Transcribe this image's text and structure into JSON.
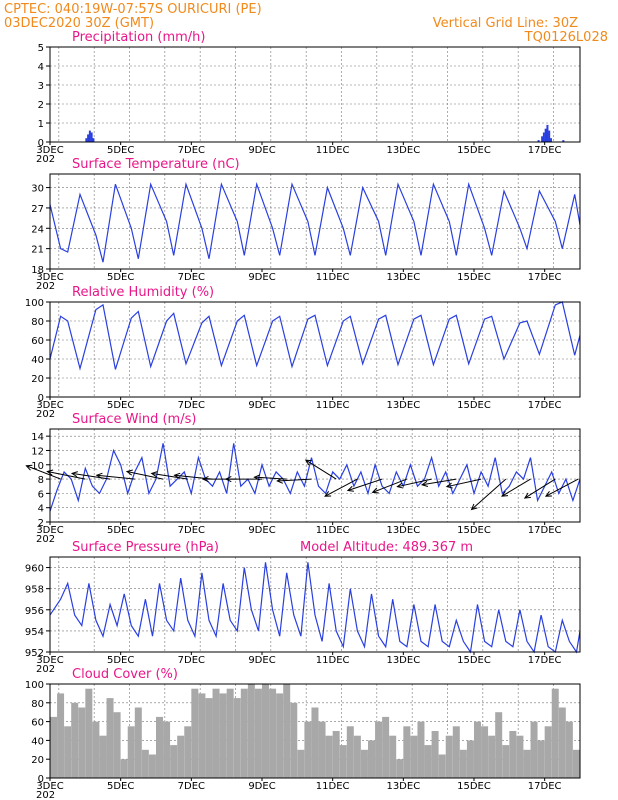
{
  "header": {
    "line1": "CPTEC:   040:19W-07:57S   OURICURI (PE)",
    "line2": "03DEC2020 30Z (GMT)",
    "grid_note": "Vertical Grid Line: 30Z",
    "code": "TQ0126L028"
  },
  "colors": {
    "header": "#f08a1c",
    "title": "#e8178a",
    "series": "#2a3fe0",
    "wind_arrow": "#000000",
    "cloud": "#a8a8a8",
    "grid": "#777777"
  },
  "x_axis": {
    "start_day": 3,
    "end_day": 18,
    "tick_labels": [
      "3DEC",
      "5DEC",
      "7DEC",
      "9DEC",
      "11DEC",
      "13DEC",
      "15DEC",
      "17DEC"
    ],
    "tick_days": [
      3,
      5,
      7,
      9,
      11,
      13,
      15,
      17
    ],
    "year_fragment": "202"
  },
  "chart_data": [
    {
      "type": "bar",
      "title": "Precipitation (mm/h)",
      "ylim": [
        0,
        5
      ],
      "yticks": [
        "0",
        "1",
        "2",
        "3",
        "4",
        "5"
      ],
      "x": [
        4.0,
        4.05,
        4.1,
        4.15,
        4.2,
        16.8,
        16.9,
        16.95,
        17.0,
        17.05,
        17.1,
        17.15,
        17.5
      ],
      "values": [
        0.2,
        0.4,
        0.6,
        0.5,
        0.2,
        0.1,
        0.3,
        0.5,
        0.7,
        0.9,
        0.6,
        0.2,
        0.1
      ]
    },
    {
      "type": "line",
      "title": "Surface Temperature (nC)",
      "ylim": [
        18,
        32
      ],
      "yticks": [
        "18",
        "21",
        "24",
        "27",
        "30"
      ],
      "x": [
        3.0,
        3.3,
        3.5,
        3.85,
        4.3,
        4.5,
        4.85,
        5.3,
        5.5,
        5.85,
        6.3,
        6.5,
        6.85,
        7.3,
        7.5,
        7.85,
        8.3,
        8.5,
        8.85,
        9.3,
        9.5,
        9.85,
        10.3,
        10.5,
        10.85,
        11.3,
        11.5,
        11.85,
        12.3,
        12.5,
        12.85,
        13.3,
        13.5,
        13.85,
        14.3,
        14.5,
        14.85,
        15.3,
        15.5,
        15.85,
        16.3,
        16.5,
        16.85,
        17.3,
        17.5,
        17.85,
        18.0
      ],
      "values": [
        27.5,
        21,
        20.5,
        29,
        23,
        19,
        30.5,
        24,
        19.5,
        30.5,
        25,
        20,
        30.5,
        24,
        19.5,
        30.5,
        25,
        20,
        30.5,
        24,
        20,
        30.5,
        25,
        20,
        30,
        24,
        20,
        30,
        25,
        20,
        30.5,
        25,
        20,
        30.5,
        25,
        20,
        30.5,
        24,
        20,
        29.5,
        24,
        21,
        29.5,
        25,
        21,
        29,
        24.5
      ]
    },
    {
      "type": "line",
      "title": "Relative Humidity (%)",
      "ylim": [
        0,
        100
      ],
      "yticks": [
        "0",
        "20",
        "40",
        "60",
        "80",
        "100"
      ],
      "x": [
        3.0,
        3.3,
        3.5,
        3.85,
        4.3,
        4.5,
        4.85,
        5.3,
        5.5,
        5.85,
        6.3,
        6.5,
        6.85,
        7.3,
        7.5,
        7.85,
        8.3,
        8.5,
        8.85,
        9.3,
        9.5,
        9.85,
        10.3,
        10.5,
        10.85,
        11.3,
        11.5,
        11.85,
        12.3,
        12.5,
        12.85,
        13.3,
        13.5,
        13.85,
        14.3,
        14.5,
        14.85,
        15.3,
        15.5,
        15.85,
        16.3,
        16.5,
        16.85,
        17.3,
        17.5,
        17.85,
        18.0
      ],
      "values": [
        40,
        85,
        80,
        30,
        92,
        97,
        29,
        83,
        90,
        32,
        80,
        88,
        35,
        78,
        85,
        33,
        80,
        86,
        33,
        80,
        85,
        32,
        82,
        86,
        33,
        80,
        85,
        35,
        82,
        86,
        34,
        82,
        86,
        34,
        82,
        86,
        35,
        82,
        85,
        40,
        78,
        80,
        45,
        97,
        100,
        44,
        65
      ]
    },
    {
      "type": "line",
      "title": "Surface Wind (m/s)",
      "ylim": [
        2,
        15
      ],
      "yticks": [
        "2",
        "4",
        "6",
        "8",
        "10",
        "12",
        "14"
      ],
      "x": [
        3.0,
        3.2,
        3.4,
        3.6,
        3.8,
        4.0,
        4.2,
        4.4,
        4.6,
        4.8,
        5.0,
        5.2,
        5.4,
        5.6,
        5.8,
        6.0,
        6.2,
        6.4,
        6.6,
        6.8,
        7.0,
        7.2,
        7.4,
        7.6,
        7.8,
        8.0,
        8.2,
        8.4,
        8.6,
        8.8,
        9.0,
        9.2,
        9.4,
        9.6,
        9.8,
        10.0,
        10.2,
        10.4,
        10.6,
        10.8,
        11.0,
        11.2,
        11.4,
        11.6,
        11.8,
        12.0,
        12.2,
        12.4,
        12.6,
        12.8,
        13.0,
        13.2,
        13.4,
        13.6,
        13.8,
        14.0,
        14.2,
        14.4,
        14.6,
        14.8,
        15.0,
        15.2,
        15.4,
        15.6,
        15.8,
        16.0,
        16.2,
        16.4,
        16.6,
        16.8,
        17.0,
        17.2,
        17.4,
        17.6,
        17.8,
        18.0
      ],
      "values": [
        3.5,
        6.5,
        9,
        8,
        5,
        9.5,
        7,
        6,
        8,
        12,
        10,
        6,
        9,
        11,
        6,
        8,
        13,
        7,
        8,
        9,
        6,
        11,
        8,
        7,
        9,
        6,
        13,
        7,
        8,
        6,
        10,
        7,
        9,
        8,
        6,
        9,
        7,
        11,
        7,
        6,
        9,
        8,
        10,
        7,
        9,
        6,
        10,
        7,
        6,
        9,
        7,
        10,
        7,
        8,
        11,
        7,
        9,
        6,
        8,
        10,
        6,
        9,
        7,
        11,
        6,
        7,
        9,
        8,
        11,
        5,
        7,
        9,
        6,
        8,
        5,
        8
      ]
    },
    {
      "type": "line",
      "title": "Surface Pressure (hPa)",
      "ylim": [
        952,
        961
      ],
      "yticks": [
        "952",
        "954",
        "956",
        "958",
        "960"
      ],
      "annotation": "Model Altitude: 489.367 m",
      "x": [
        3.0,
        3.3,
        3.5,
        3.7,
        3.9,
        4.1,
        4.3,
        4.5,
        4.7,
        4.9,
        5.1,
        5.3,
        5.5,
        5.7,
        5.9,
        6.1,
        6.3,
        6.5,
        6.7,
        6.9,
        7.1,
        7.3,
        7.5,
        7.7,
        7.9,
        8.1,
        8.3,
        8.5,
        8.7,
        8.9,
        9.1,
        9.3,
        9.5,
        9.7,
        9.9,
        10.1,
        10.3,
        10.5,
        10.7,
        10.9,
        11.1,
        11.3,
        11.5,
        11.7,
        11.9,
        12.1,
        12.3,
        12.5,
        12.7,
        12.9,
        13.1,
        13.3,
        13.5,
        13.7,
        13.9,
        14.1,
        14.3,
        14.5,
        14.7,
        14.9,
        15.1,
        15.3,
        15.5,
        15.7,
        15.9,
        16.1,
        16.3,
        16.5,
        16.7,
        16.9,
        17.1,
        17.3,
        17.5,
        17.7,
        17.9,
        18.0
      ],
      "values": [
        955.5,
        957,
        958.5,
        955.5,
        954.5,
        958.5,
        955,
        953.5,
        956.5,
        954.5,
        957.5,
        954.5,
        953.5,
        957,
        953.5,
        958.5,
        955,
        954,
        959,
        955,
        953.5,
        959.5,
        955,
        953.5,
        958.5,
        955,
        954,
        960,
        956,
        954,
        960.5,
        956,
        953.5,
        959.5,
        955.5,
        953.5,
        960.5,
        955.5,
        953,
        958.5,
        954,
        952.5,
        958,
        954,
        952.5,
        957.5,
        953.5,
        952.5,
        957,
        953,
        952.5,
        956.5,
        953,
        952.5,
        956.5,
        953,
        952.5,
        955,
        953,
        952,
        956.5,
        953,
        952.5,
        956,
        953,
        952.5,
        956,
        953,
        952,
        955.5,
        952.5,
        952,
        955,
        953,
        952,
        954
      ]
    },
    {
      "type": "bar",
      "title": "Cloud Cover (%)",
      "ylim": [
        0,
        100
      ],
      "yticks": [
        "0",
        "20",
        "40",
        "60",
        "80",
        "100"
      ],
      "x": [
        3.0,
        3.2,
        3.4,
        3.6,
        3.8,
        4.0,
        4.2,
        4.4,
        4.6,
        4.8,
        5.0,
        5.2,
        5.4,
        5.6,
        5.8,
        6.0,
        6.2,
        6.4,
        6.6,
        6.8,
        7.0,
        7.2,
        7.4,
        7.6,
        7.8,
        8.0,
        8.2,
        8.4,
        8.6,
        8.8,
        9.0,
        9.2,
        9.4,
        9.6,
        9.8,
        10.0,
        10.2,
        10.4,
        10.6,
        10.8,
        11.0,
        11.2,
        11.4,
        11.6,
        11.8,
        12.0,
        12.2,
        12.4,
        12.6,
        12.8,
        13.0,
        13.2,
        13.4,
        13.6,
        13.8,
        14.0,
        14.2,
        14.4,
        14.6,
        14.8,
        15.0,
        15.2,
        15.4,
        15.6,
        15.8,
        16.0,
        16.2,
        16.4,
        16.6,
        16.8,
        17.0,
        17.2,
        17.4,
        17.6,
        17.8
      ],
      "values": [
        65,
        90,
        55,
        80,
        75,
        95,
        60,
        45,
        85,
        70,
        20,
        55,
        75,
        30,
        25,
        65,
        60,
        35,
        45,
        55,
        95,
        90,
        85,
        95,
        90,
        95,
        85,
        95,
        100,
        95,
        100,
        95,
        90,
        100,
        80,
        30,
        60,
        75,
        60,
        45,
        50,
        35,
        55,
        45,
        30,
        40,
        60,
        65,
        45,
        20,
        55,
        45,
        60,
        35,
        50,
        25,
        45,
        55,
        30,
        40,
        60,
        55,
        45,
        70,
        35,
        50,
        45,
        30,
        60,
        40,
        55,
        95,
        75,
        60,
        30
      ]
    }
  ],
  "wind_arrows": {
    "x": [
      3.3,
      4.0,
      4.7,
      5.4,
      6.2,
      6.9,
      7.6,
      8.3,
      9.0,
      9.7,
      10.4,
      11.1,
      11.7,
      12.4,
      13.1,
      13.8,
      14.5,
      15.2,
      15.9,
      16.6,
      17.3,
      17.95
    ],
    "u": [
      -0.9,
      -1.0,
      -1.0,
      -1.0,
      -0.95,
      -0.95,
      -1.0,
      -0.9,
      -0.95,
      -0.85,
      -0.9,
      -0.8,
      -0.85,
      -0.9,
      -0.9,
      -0.9,
      -0.9,
      -0.9,
      -0.9,
      -0.75,
      -0.8,
      -0.85
    ],
    "v": [
      0.35,
      0.2,
      0.15,
      0.1,
      0.2,
      0.15,
      0.1,
      0.0,
      0.0,
      0.05,
      -0.05,
      0.5,
      -0.45,
      -0.3,
      -0.35,
      -0.2,
      -0.15,
      -0.2,
      -0.8,
      -0.45,
      -0.5,
      -0.45
    ]
  }
}
